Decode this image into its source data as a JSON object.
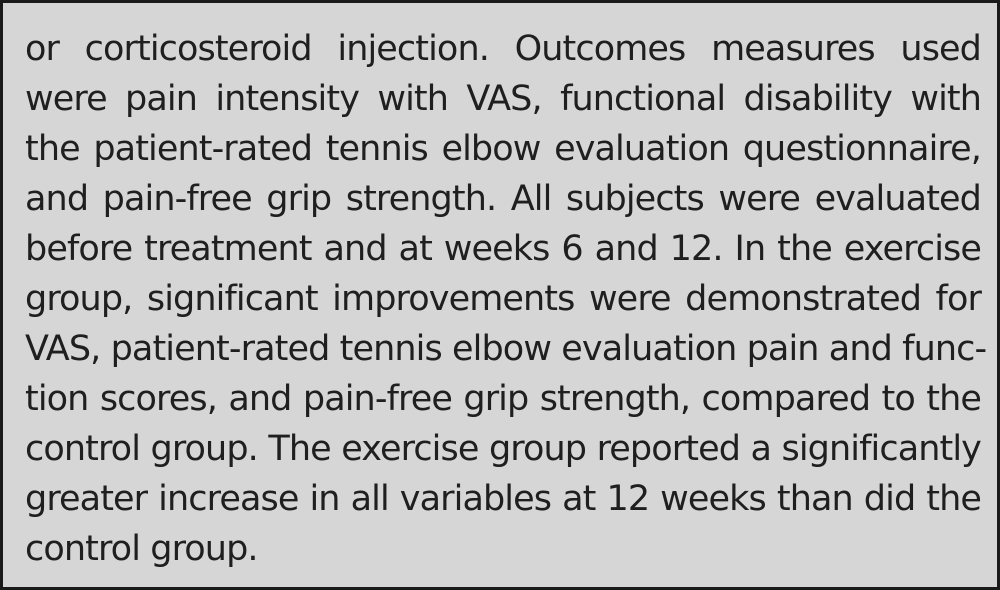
{
  "lines": [
    "or corticosteroid injection. Outcomes measures used",
    "were pain intensity with VAS, functional disability with",
    "the patient-rated tennis elbow evaluation questionnaire,",
    "and pain-free grip strength. All subjects were evaluated",
    "before treatment and at weeks 6 and 12. In the exercise",
    "group, significant improvements were demonstrated for",
    "VAS, patient-rated tennis elbow evaluation pain and func-",
    "tion scores, and pain-free grip strength, compared to the",
    "control group. The exercise group reported a significantly",
    "greater increase in all variables at 12 weeks than did the",
    "control group."
  ]
}
